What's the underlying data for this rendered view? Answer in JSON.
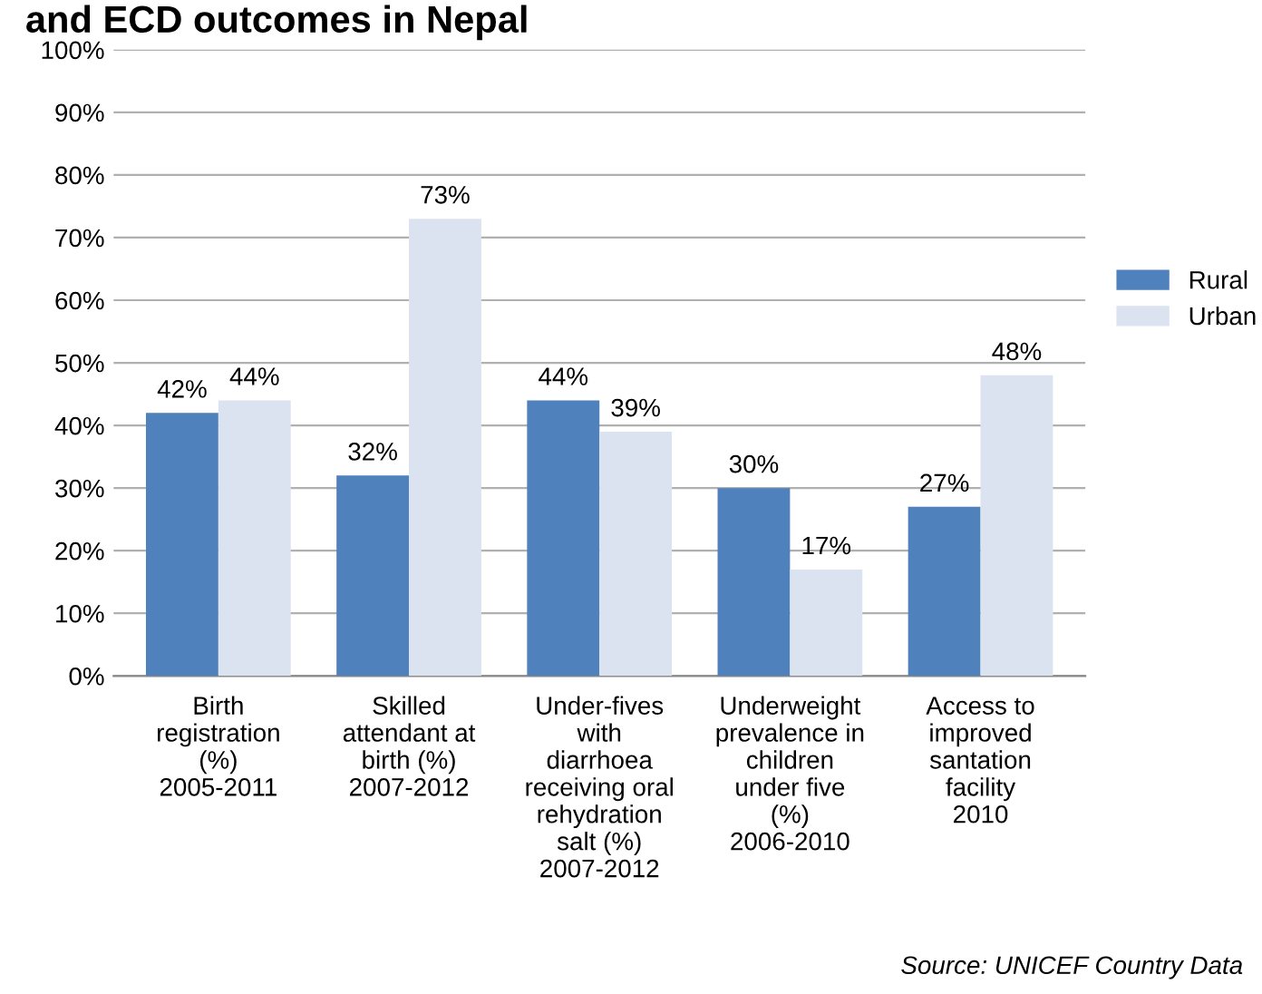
{
  "chart_data": {
    "type": "bar",
    "title": "and ECD outcomes in Nepal",
    "categories": [
      "Birth\nregistration\n(%)\n2005-2011",
      "Skilled\nattendant at\nbirth (%)\n2007-2012",
      "Under-fives\nwith\ndiarrhoea\nreceiving oral\nrehydration\nsalt (%)\n2007-2012",
      "Underweight\nprevalence in\nchildren\nunder five\n(%)\n2006-2010",
      "Access to\nimproved\nsantation\nfacility\n2010"
    ],
    "series": [
      {
        "name": "Rural",
        "color": "#4f81bd",
        "values": [
          42,
          32,
          44,
          30,
          27
        ],
        "value_labels": [
          "42%",
          "32%",
          "44%",
          "30%",
          "27%"
        ]
      },
      {
        "name": "Urban",
        "color": "#dce3f0",
        "values": [
          44,
          73,
          39,
          17,
          48
        ],
        "value_labels": [
          "44%",
          "73%",
          "39%",
          "17%",
          "48%"
        ]
      }
    ],
    "ylim": [
      0,
      100
    ],
    "yticks": [
      {
        "value": 0,
        "label": "0%"
      },
      {
        "value": 10,
        "label": "10%"
      },
      {
        "value": 20,
        "label": "20%"
      },
      {
        "value": 30,
        "label": "30%"
      },
      {
        "value": 40,
        "label": "40%"
      },
      {
        "value": 50,
        "label": "50%"
      },
      {
        "value": 60,
        "label": "60%"
      },
      {
        "value": 70,
        "label": "70%"
      },
      {
        "value": 80,
        "label": "80%"
      },
      {
        "value": 90,
        "label": "90%"
      },
      {
        "value": 100,
        "label": "100%"
      }
    ],
    "grid": "y",
    "legend": "right",
    "annotations": [
      "Source: UNICEF Country Data"
    ]
  }
}
